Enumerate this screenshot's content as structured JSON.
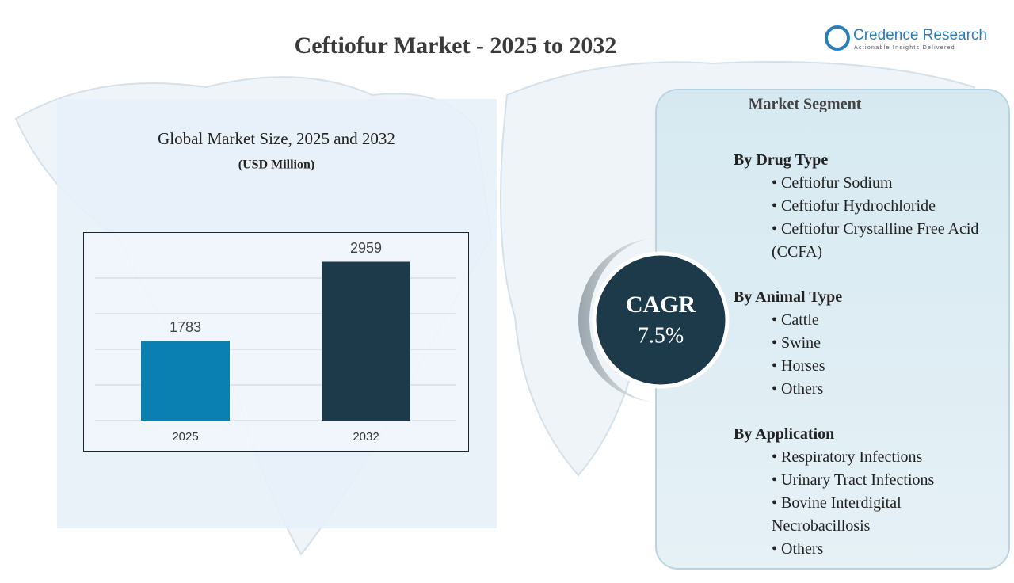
{
  "header": {
    "title": "Ceftiofur Market - 2025 to 2032",
    "logo": {
      "name": "Credence Research",
      "tagline": "Actionable Insights Delivered"
    }
  },
  "chart_data": {
    "type": "bar",
    "title": "Global Market Size, 2025 and 2032",
    "subtitle": "(USD Million)",
    "categories": [
      "2025",
      "2032"
    ],
    "values": [
      1783,
      2959
    ],
    "colors": [
      "#0a80b2",
      "#1c3a4a"
    ],
    "ylim": [
      600,
      3400
    ],
    "grid": true
  },
  "cagr": {
    "label": "CAGR",
    "value": "7.5%"
  },
  "segments": {
    "title": "Market Segment",
    "groups": [
      {
        "name": "By Drug Type",
        "items": [
          "• Ceftiofur Sodium",
          "• Ceftiofur Hydrochloride",
          "• Ceftiofur Crystalline Free Acid (CCFA)"
        ]
      },
      {
        "name": "By Animal Type",
        "items": [
          "• Cattle",
          "• Swine",
          "• Horses",
          "• Others"
        ]
      },
      {
        "name": "By Application",
        "items": [
          "• Respiratory Infections",
          "• Urinary Tract Infections",
          "• Bovine Interdigital Necrobacillosis",
          "• Others"
        ]
      }
    ]
  }
}
